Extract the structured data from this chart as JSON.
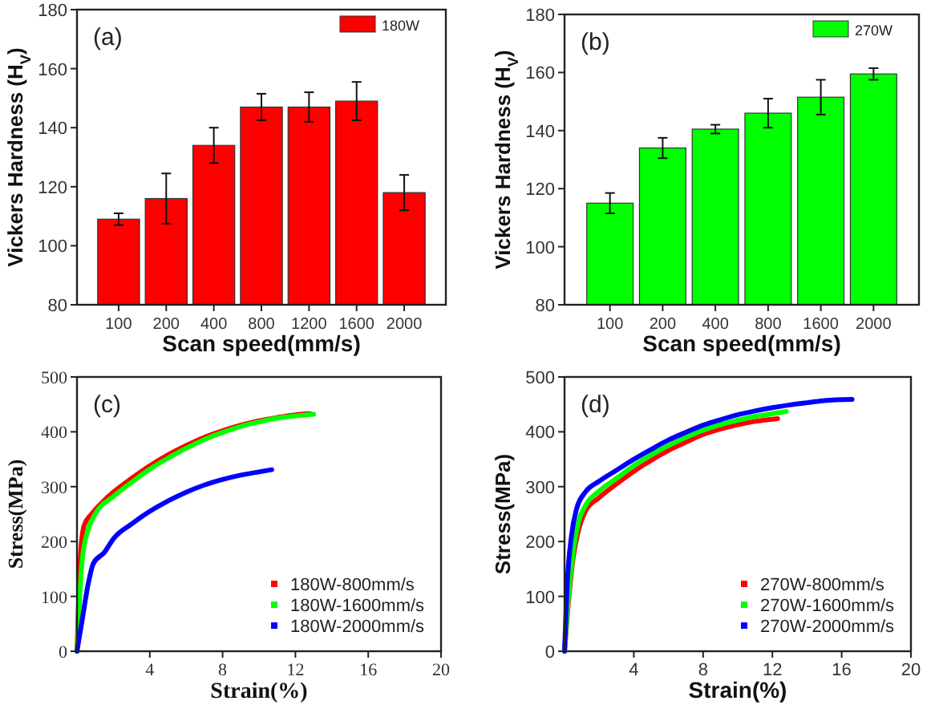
{
  "chart_data": [
    {
      "type": "bar",
      "annotations": [
        "(a)"
      ],
      "xlabel": "Scan speed(mm/s)",
      "ylabel": "Vickers Hardness (H$_{V}$)",
      "categories": [
        "100",
        "200",
        "400",
        "800",
        "1200",
        "1600",
        "2000"
      ],
      "series": [
        {
          "name": "180W",
          "color": "#ff0000",
          "values": [
            109,
            116,
            134,
            147,
            147,
            149,
            118
          ],
          "errors": [
            2,
            8.5,
            6,
            4.5,
            5,
            6.5,
            6
          ]
        }
      ],
      "ylim": [
        80,
        180
      ],
      "yticks": [
        80,
        100,
        120,
        140,
        160,
        180
      ],
      "legend": "top right"
    },
    {
      "type": "bar",
      "annotations": [
        "(b)"
      ],
      "xlabel": "Scan speed(mm/s)",
      "ylabel": "Vickers Hardness (H$_{V}$)",
      "categories": [
        "100",
        "200",
        "400",
        "800",
        "1600",
        "2000"
      ],
      "series": [
        {
          "name": "270W",
          "color": "#00ff00",
          "values": [
            115,
            134,
            140.5,
            146,
            151.5,
            159.5
          ],
          "errors": [
            3.5,
            3.5,
            1.5,
            5,
            6,
            2
          ]
        }
      ],
      "ylim": [
        80,
        180
      ],
      "yticks": [
        80,
        100,
        120,
        140,
        160,
        180
      ],
      "legend": "top right"
    },
    {
      "type": "line",
      "annotations": [
        "(c)"
      ],
      "xlabel": "Strain(%)",
      "ylabel": "Stress(MPa)",
      "xlim": [
        0,
        20
      ],
      "xticks": [
        4,
        8,
        12,
        16,
        20
      ],
      "ylim": [
        0,
        500
      ],
      "yticks": [
        0,
        100,
        200,
        300,
        400,
        500
      ],
      "legend": "bottom right",
      "series": [
        {
          "name": "180W-800mm/s",
          "color": "#ff0000",
          "x": [
            0,
            0.1,
            0.2,
            0.4,
            0.8,
            1.5,
            2,
            3,
            4,
            5,
            6,
            7,
            8,
            9,
            10,
            11,
            12,
            12.8
          ],
          "values": [
            0,
            100,
            180,
            230,
            250,
            275,
            290,
            315,
            338,
            358,
            375,
            390,
            402,
            412,
            420,
            426,
            431,
            433
          ]
        },
        {
          "name": "180W-1600mm/s",
          "color": "#00ff00",
          "x": [
            0,
            0.15,
            0.3,
            0.6,
            1,
            2,
            3,
            4,
            5,
            6,
            7,
            8,
            9,
            10,
            11,
            12,
            13
          ],
          "values": [
            0,
            100,
            170,
            220,
            250,
            282,
            308,
            332,
            352,
            370,
            386,
            399,
            410,
            418,
            425,
            429,
            432
          ]
        },
        {
          "name": "180W-2000mm/s",
          "color": "#0000ff",
          "x": [
            0,
            0.3,
            0.6,
            0.9,
            1.5,
            2,
            3,
            4,
            5,
            6,
            7,
            8,
            9,
            10,
            10.7
          ],
          "values": [
            0,
            60,
            120,
            160,
            180,
            205,
            232,
            255,
            274,
            290,
            303,
            313,
            321,
            327,
            331
          ]
        }
      ]
    },
    {
      "type": "line",
      "annotations": [
        "(d)"
      ],
      "xlabel": "Strain(%)",
      "ylabel": "Stress(MPa)",
      "xlim": [
        0,
        20
      ],
      "xticks": [
        4,
        8,
        12,
        16,
        20
      ],
      "ylim": [
        0,
        500
      ],
      "yticks": [
        0,
        100,
        200,
        300,
        400,
        500
      ],
      "legend": "bottom right",
      "series": [
        {
          "name": "270W-800mm/s",
          "color": "#ff0000",
          "x": [
            0,
            0.2,
            0.5,
            0.8,
            1.2,
            2,
            3,
            4,
            5,
            6,
            7,
            8,
            9,
            10,
            11,
            12.3
          ],
          "values": [
            0,
            80,
            170,
            220,
            255,
            280,
            305,
            328,
            348,
            366,
            381,
            395,
            405,
            413,
            419,
            424
          ]
        },
        {
          "name": "270W-1600mm/s",
          "color": "#00ff00",
          "x": [
            0,
            0.2,
            0.5,
            0.8,
            1.2,
            2,
            3,
            4,
            5,
            6,
            7,
            8,
            9,
            10,
            11,
            12,
            12.8
          ],
          "values": [
            0,
            90,
            180,
            235,
            265,
            292,
            315,
            338,
            358,
            375,
            390,
            403,
            413,
            421,
            428,
            433,
            437
          ]
        },
        {
          "name": "270W-2000mm/s",
          "color": "#0000ff",
          "x": [
            0,
            0.15,
            0.4,
            0.7,
            1.2,
            2,
            3,
            4,
            5,
            6,
            7,
            8,
            9,
            10,
            11,
            12,
            13,
            14,
            15,
            16.6
          ],
          "values": [
            0,
            120,
            210,
            260,
            290,
            310,
            330,
            350,
            368,
            385,
            399,
            412,
            422,
            431,
            438,
            444,
            449,
            453,
            457,
            459
          ]
        }
      ]
    }
  ]
}
